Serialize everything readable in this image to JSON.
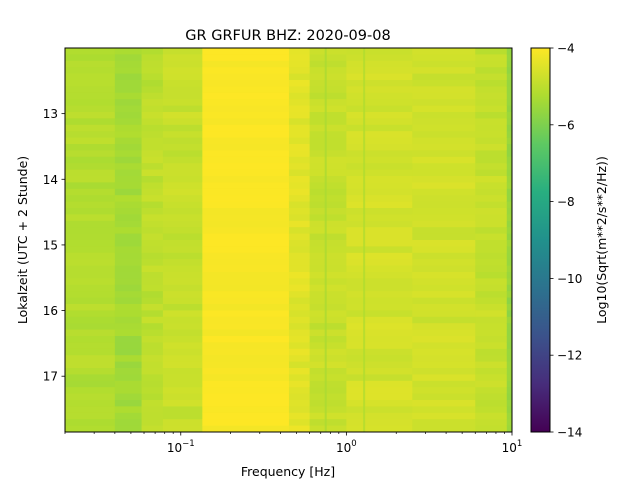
{
  "chart_data": {
    "type": "heatmap",
    "title": "GR GRFUR  BHZ: 2020-09-08",
    "xlabel": "Frequency [Hz]",
    "ylabel": "Lokalzeit (UTC + 2 Stunde)",
    "x_scale": "log",
    "xlim": [
      0.02,
      10
    ],
    "ylim": [
      17.85,
      12.0
    ],
    "y_inverted": true,
    "x_ticks": [
      {
        "value": 0.1,
        "base": "10",
        "exp": "−1"
      },
      {
        "value": 1,
        "base": "10",
        "exp": "0"
      },
      {
        "value": 10,
        "base": "10",
        "exp": "1"
      }
    ],
    "y_ticks": [
      {
        "value": 13,
        "label": "13"
      },
      {
        "value": 14,
        "label": "14"
      },
      {
        "value": 15,
        "label": "15"
      },
      {
        "value": 16,
        "label": "16"
      },
      {
        "value": 17,
        "label": "17"
      }
    ],
    "colormap": "viridis",
    "colorbar": {
      "label": "Log10(Sqrt(m**2/s**2/Hz))",
      "range": [
        -14,
        -4
      ],
      "ticks": [
        {
          "value": -4,
          "label": "−4"
        },
        {
          "value": -6,
          "label": "−6"
        },
        {
          "value": -8,
          "label": "−8"
        },
        {
          "value": -10,
          "label": "−10"
        },
        {
          "value": -12,
          "label": "−12"
        },
        {
          "value": -14,
          "label": "−14"
        }
      ]
    },
    "frequency_bands": [
      {
        "f_min": 0.02,
        "f_max": 0.04,
        "value": -5.15
      },
      {
        "f_min": 0.04,
        "f_max": 0.058,
        "value": -5.4
      },
      {
        "f_min": 0.058,
        "f_max": 0.078,
        "value": -5.0
      },
      {
        "f_min": 0.078,
        "f_max": 0.135,
        "value": -4.85
      },
      {
        "f_min": 0.135,
        "f_max": 0.45,
        "value": -4.05
      },
      {
        "f_min": 0.45,
        "f_max": 0.6,
        "value": -4.45
      },
      {
        "f_min": 0.6,
        "f_max": 1.0,
        "value": -4.85
      },
      {
        "f_min": 1.0,
        "f_max": 2.5,
        "value": -4.65
      },
      {
        "f_min": 2.5,
        "f_max": 6.0,
        "value": -4.7
      },
      {
        "f_min": 6.0,
        "f_max": 9.3,
        "value": -4.9
      },
      {
        "f_min": 9.3,
        "f_max": 10.0,
        "value": -5.6
      }
    ],
    "spectral_lines": [
      {
        "frequency": 0.75,
        "value": -5.3
      },
      {
        "frequency": 1.28,
        "value": -5.2
      }
    ]
  }
}
